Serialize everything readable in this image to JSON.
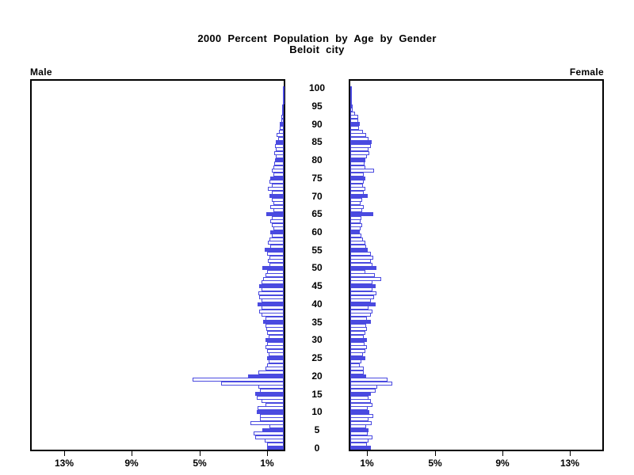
{
  "title": {
    "line1": "2000 Percent Population by Age by Gender",
    "line2": "Beloit city"
  },
  "panel_labels": {
    "left": "Male",
    "right": "Female"
  },
  "colors": {
    "bar_fill": "#4a4ae0",
    "bar_outline": "#4a4ae0",
    "axis": "#000000",
    "background": "#ffffff"
  },
  "chart_data": {
    "type": "bar",
    "subtype": "population-pyramid",
    "orientation": "horizontal",
    "title": "2000 Percent Population by Age by Gender",
    "subtitle": "Beloit city",
    "age_axis": {
      "min": 0,
      "max": 100,
      "tick_interval": 5,
      "tick_labels": [
        "0",
        "5",
        "10",
        "15",
        "20",
        "25",
        "30",
        "35",
        "40",
        "45",
        "50",
        "55",
        "60",
        "65",
        "70",
        "75",
        "80",
        "85",
        "90",
        "95",
        "100"
      ]
    },
    "pct_axis": {
      "ticks": [
        1,
        5,
        9,
        13
      ],
      "tick_labels_left": [
        "1%",
        "5%",
        "9%",
        "13%"
      ],
      "tick_labels_right": [
        "1%",
        "5%",
        "9%",
        "13%"
      ],
      "max_pct": 15,
      "unit": "percent"
    },
    "fill_rule": "bars for ages divisible by 5 are solid filled; other ages are hollow outline",
    "filled_age_multiple": 5,
    "series": [
      {
        "name": "Male",
        "side": "left",
        "values": [
          1.0,
          1.0,
          1.15,
          1.7,
          1.8,
          1.25,
          0.85,
          1.95,
          1.4,
          1.4,
          1.6,
          1.55,
          1.1,
          1.3,
          1.6,
          1.7,
          1.4,
          1.5,
          3.7,
          5.4,
          2.1,
          1.5,
          1.1,
          1.0,
          0.9,
          1.0,
          0.9,
          1.0,
          1.1,
          1.0,
          1.1,
          0.9,
          1.0,
          1.05,
          1.1,
          1.2,
          1.1,
          1.3,
          1.45,
          1.3,
          1.55,
          1.3,
          1.45,
          1.5,
          1.3,
          1.45,
          1.3,
          1.2,
          1.1,
          1.0,
          1.25,
          0.85,
          0.95,
          0.85,
          1.0,
          1.15,
          0.8,
          0.95,
          0.85,
          0.7,
          0.8,
          0.6,
          0.7,
          0.8,
          0.7,
          1.05,
          0.6,
          0.8,
          0.6,
          0.7,
          0.85,
          0.7,
          0.95,
          0.7,
          0.85,
          0.8,
          0.6,
          0.7,
          0.6,
          0.55,
          0.5,
          0.45,
          0.55,
          0.45,
          0.5,
          0.45,
          0.35,
          0.4,
          0.3,
          0.25,
          0.25,
          0.15,
          0.15,
          0.1,
          0.1,
          0.1,
          0.05,
          0.05,
          0.05,
          0.03,
          0.03
        ]
      },
      {
        "name": "Female",
        "side": "right",
        "values": [
          1.2,
          1.0,
          1.1,
          1.3,
          1.05,
          1.1,
          0.95,
          1.25,
          1.1,
          1.35,
          1.15,
          1.05,
          1.3,
          1.2,
          1.1,
          1.2,
          1.5,
          1.6,
          2.5,
          2.2,
          0.95,
          0.8,
          0.8,
          0.55,
          0.65,
          0.9,
          0.75,
          0.9,
          1.0,
          0.85,
          1.0,
          0.8,
          0.9,
          1.0,
          0.95,
          1.2,
          1.0,
          1.2,
          1.3,
          1.1,
          1.5,
          1.2,
          1.4,
          1.55,
          1.3,
          1.5,
          1.3,
          1.85,
          1.45,
          0.9,
          1.55,
          1.3,
          1.2,
          1.35,
          1.2,
          1.05,
          0.95,
          0.9,
          0.75,
          0.65,
          0.55,
          0.6,
          0.7,
          0.6,
          0.65,
          1.35,
          0.7,
          0.8,
          0.6,
          0.7,
          1.05,
          0.8,
          0.9,
          0.75,
          0.8,
          0.9,
          0.8,
          1.4,
          0.9,
          0.85,
          0.9,
          1.0,
          1.15,
          1.1,
          1.2,
          1.25,
          1.1,
          0.95,
          0.75,
          0.5,
          0.55,
          0.45,
          0.45,
          0.3,
          0.15,
          0.12,
          0.1,
          0.08,
          0.1,
          0.05,
          0.1
        ]
      }
    ]
  }
}
